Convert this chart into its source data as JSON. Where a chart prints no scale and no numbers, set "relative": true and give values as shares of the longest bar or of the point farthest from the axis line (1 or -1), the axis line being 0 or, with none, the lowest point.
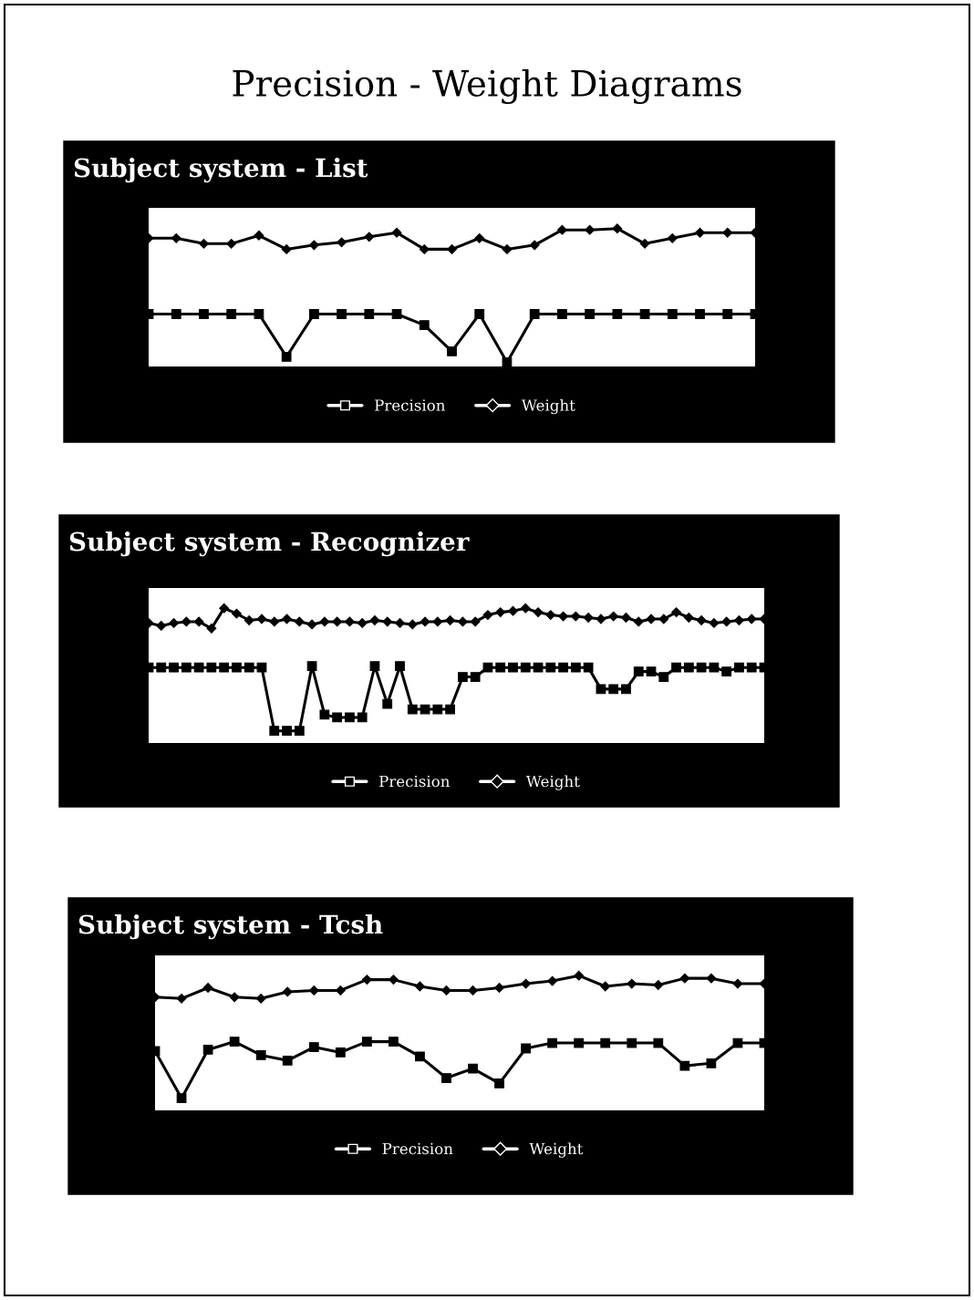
{
  "chart_data": [
    {
      "type": "line",
      "title": "Subject system - List",
      "annotations": [
        "Precision - Weight Diagrams"
      ],
      "relative": true,
      "legend": "bottom",
      "grid": false,
      "categories": [
        null,
        null,
        null,
        null,
        null,
        null,
        null,
        null,
        null,
        null,
        null,
        null,
        null,
        null,
        null,
        null,
        null,
        null,
        null,
        null,
        null,
        null,
        null
      ],
      "series": [
        {
          "name": "Precision",
          "color": "#000000",
          "marker": "square",
          "values": [
            0.38,
            0.38,
            0.38,
            0.38,
            0.38,
            0.07,
            0.38,
            0.38,
            0.38,
            0.38,
            0.3,
            0.11,
            0.38,
            0.03,
            0.38,
            0.38,
            0.38,
            0.38,
            0.38,
            0.38,
            0.38,
            0.38,
            0.38
          ]
        },
        {
          "name": "Weight",
          "color": "#000000",
          "marker": "diamond",
          "values": [
            0.93,
            0.93,
            0.89,
            0.89,
            0.95,
            0.85,
            0.88,
            0.9,
            0.94,
            0.97,
            0.85,
            0.85,
            0.93,
            0.85,
            0.88,
            0.99,
            0.99,
            1.0,
            0.89,
            0.93,
            0.97,
            0.97,
            0.97
          ]
        }
      ]
    },
    {
      "type": "line",
      "title": "Subject system - Recognizer",
      "relative": true,
      "legend": "bottom",
      "grid": false,
      "categories": [
        null,
        null,
        null,
        null,
        null,
        null,
        null,
        null,
        null,
        null,
        null,
        null,
        null,
        null,
        null,
        null,
        null,
        null,
        null,
        null,
        null,
        null,
        null,
        null,
        null,
        null,
        null,
        null,
        null,
        null,
        null,
        null,
        null,
        null,
        null,
        null,
        null,
        null,
        null,
        null,
        null,
        null,
        null,
        null,
        null,
        null,
        null,
        null,
        null,
        null
      ],
      "series": [
        {
          "name": "Precision",
          "color": "#000000",
          "marker": "square",
          "values": [
            0.56,
            0.56,
            0.56,
            0.56,
            0.56,
            0.56,
            0.56,
            0.56,
            0.56,
            0.56,
            0.09,
            0.09,
            0.09,
            0.57,
            0.21,
            0.19,
            0.19,
            0.19,
            0.57,
            0.29,
            0.57,
            0.25,
            0.25,
            0.25,
            0.25,
            0.49,
            0.49,
            0.56,
            0.56,
            0.56,
            0.56,
            0.56,
            0.56,
            0.56,
            0.56,
            0.56,
            0.4,
            0.4,
            0.4,
            0.53,
            0.53,
            0.49,
            0.56,
            0.56,
            0.56,
            0.56,
            0.53,
            0.56,
            0.56,
            0.56
          ]
        },
        {
          "name": "Weight",
          "color": "#000000",
          "marker": "diamond",
          "values": [
            0.89,
            0.87,
            0.89,
            0.9,
            0.9,
            0.85,
            1.0,
            0.96,
            0.91,
            0.92,
            0.9,
            0.92,
            0.9,
            0.88,
            0.9,
            0.9,
            0.9,
            0.89,
            0.91,
            0.9,
            0.89,
            0.88,
            0.9,
            0.9,
            0.91,
            0.9,
            0.9,
            0.95,
            0.97,
            0.98,
            1.0,
            0.97,
            0.95,
            0.94,
            0.94,
            0.93,
            0.92,
            0.94,
            0.93,
            0.9,
            0.92,
            0.92,
            0.97,
            0.93,
            0.91,
            0.89,
            0.9,
            0.91,
            0.92,
            0.92
          ]
        }
      ]
    },
    {
      "type": "line",
      "title": "Subject system - Tcsh",
      "relative": true,
      "legend": "bottom",
      "grid": false,
      "categories": [
        null,
        null,
        null,
        null,
        null,
        null,
        null,
        null,
        null,
        null,
        null,
        null,
        null,
        null,
        null,
        null,
        null,
        null,
        null,
        null,
        null,
        null,
        null,
        null
      ],
      "series": [
        {
          "name": "Precision",
          "color": "#000000",
          "marker": "square",
          "values": [
            0.44,
            0.09,
            0.45,
            0.51,
            0.41,
            0.37,
            0.47,
            0.43,
            0.51,
            0.51,
            0.4,
            0.24,
            0.31,
            0.2,
            0.46,
            0.5,
            0.5,
            0.5,
            0.5,
            0.5,
            0.33,
            0.35,
            0.5,
            0.5
          ]
        },
        {
          "name": "Weight",
          "color": "#000000",
          "marker": "diamond",
          "values": [
            0.84,
            0.83,
            0.91,
            0.84,
            0.83,
            0.88,
            0.89,
            0.89,
            0.97,
            0.97,
            0.92,
            0.89,
            0.89,
            0.91,
            0.94,
            0.96,
            1.0,
            0.92,
            0.94,
            0.93,
            0.98,
            0.98,
            0.94,
            0.94
          ]
        }
      ]
    }
  ]
}
